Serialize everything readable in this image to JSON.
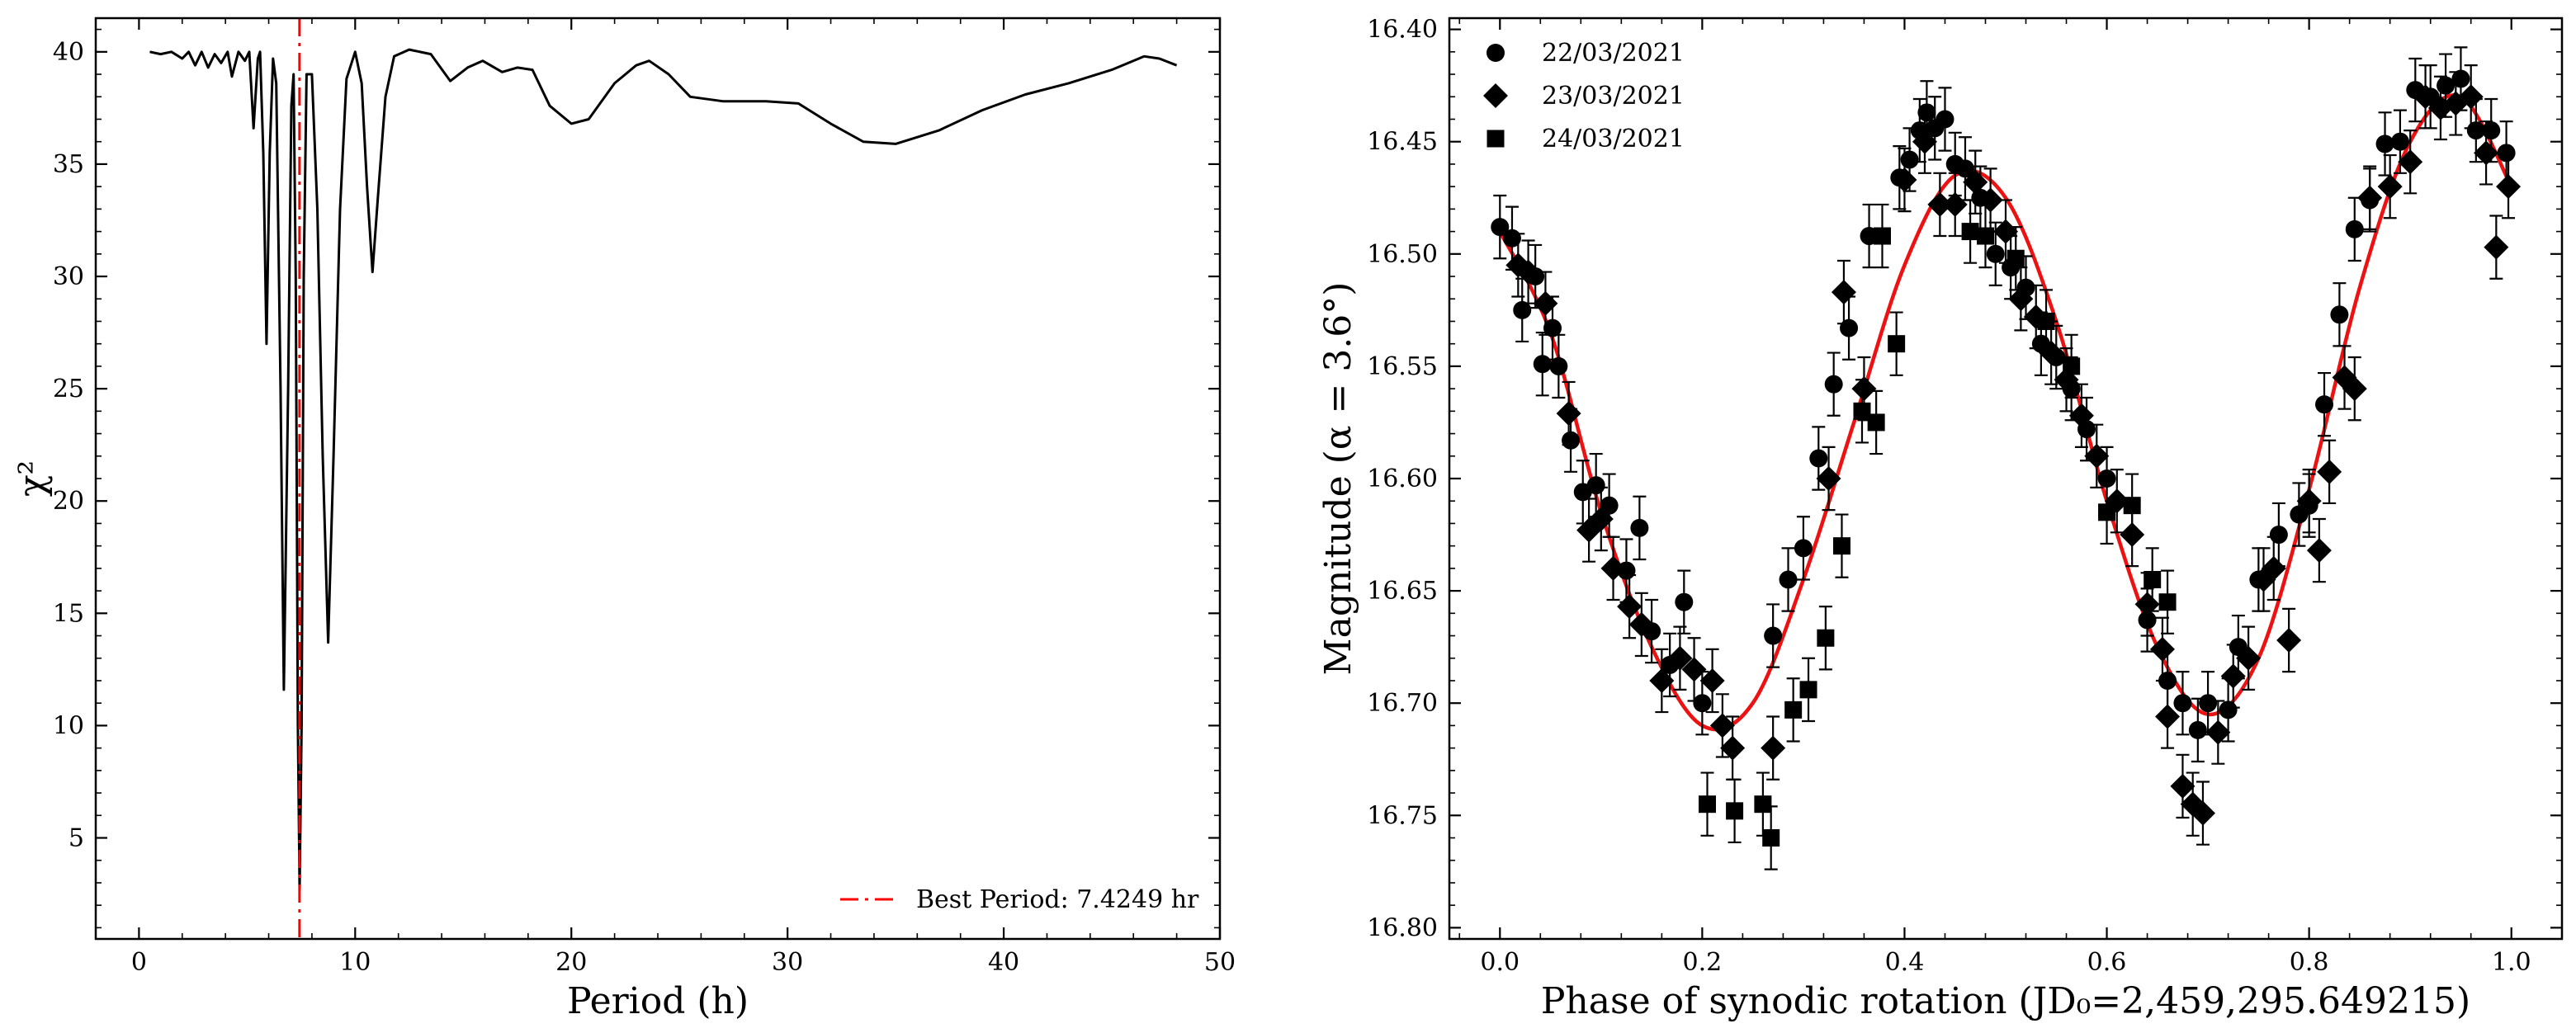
{
  "chart_data": [
    {
      "type": "line",
      "title": "",
      "xlabel": "Period (h)",
      "ylabel": "χ²",
      "xlim": [
        -2,
        50
      ],
      "ylim": [
        0.5,
        41.5
      ],
      "xticks": [
        0,
        10,
        20,
        30,
        40,
        50
      ],
      "yticks": [
        5,
        10,
        15,
        20,
        25,
        30,
        35,
        40
      ],
      "grid": false,
      "series": [
        {
          "name": "chi2",
          "color": "#000000",
          "points": [
            [
              0.5,
              40.0
            ],
            [
              1.0,
              39.9
            ],
            [
              1.5,
              40.0
            ],
            [
              2.0,
              39.7
            ],
            [
              2.3,
              40.0
            ],
            [
              2.6,
              39.4
            ],
            [
              2.9,
              40.0
            ],
            [
              3.2,
              39.3
            ],
            [
              3.5,
              39.9
            ],
            [
              3.8,
              39.5
            ],
            [
              4.1,
              40.0
            ],
            [
              4.3,
              38.9
            ],
            [
              4.6,
              40.0
            ],
            [
              4.9,
              39.6
            ],
            [
              5.1,
              40.0
            ],
            [
              5.3,
              36.6
            ],
            [
              5.5,
              39.7
            ],
            [
              5.6,
              40.0
            ],
            [
              5.75,
              35.5
            ],
            [
              5.9,
              27.0
            ],
            [
              6.05,
              35.5
            ],
            [
              6.2,
              39.7
            ],
            [
              6.35,
              38.6
            ],
            [
              6.55,
              25.0
            ],
            [
              6.7,
              11.6
            ],
            [
              6.9,
              25.0
            ],
            [
              7.05,
              37.6
            ],
            [
              7.15,
              39.0
            ],
            [
              7.25,
              30.0
            ],
            [
              7.35,
              10.0
            ],
            [
              7.43,
              2.7
            ],
            [
              7.52,
              10.0
            ],
            [
              7.62,
              30.0
            ],
            [
              7.75,
              39.0
            ],
            [
              8.0,
              39.0
            ],
            [
              8.25,
              33.0
            ],
            [
              8.5,
              22.0
            ],
            [
              8.75,
              13.7
            ],
            [
              9.0,
              22.0
            ],
            [
              9.3,
              33.0
            ],
            [
              9.6,
              38.8
            ],
            [
              10.0,
              40.0
            ],
            [
              10.3,
              38.6
            ],
            [
              10.55,
              34.0
            ],
            [
              10.8,
              30.2
            ],
            [
              11.05,
              33.5
            ],
            [
              11.4,
              38.0
            ],
            [
              11.8,
              39.8
            ],
            [
              12.5,
              40.1
            ],
            [
              13.5,
              39.9
            ],
            [
              14.4,
              38.7
            ],
            [
              15.2,
              39.3
            ],
            [
              15.9,
              39.6
            ],
            [
              16.8,
              39.1
            ],
            [
              17.5,
              39.3
            ],
            [
              18.2,
              39.2
            ],
            [
              19.0,
              37.6
            ],
            [
              20.0,
              36.8
            ],
            [
              20.8,
              37.0
            ],
            [
              22.0,
              38.6
            ],
            [
              23.0,
              39.4
            ],
            [
              23.6,
              39.6
            ],
            [
              24.5,
              39.0
            ],
            [
              25.5,
              38.0
            ],
            [
              27.0,
              37.8
            ],
            [
              29.0,
              37.8
            ],
            [
              30.5,
              37.7
            ],
            [
              32.0,
              36.8
            ],
            [
              33.5,
              36.0
            ],
            [
              35.0,
              35.9
            ],
            [
              37.0,
              36.5
            ],
            [
              39.0,
              37.4
            ],
            [
              41.0,
              38.1
            ],
            [
              43.0,
              38.6
            ],
            [
              45.0,
              39.2
            ],
            [
              46.5,
              39.8
            ],
            [
              47.2,
              39.7
            ],
            [
              48.0,
              39.4
            ]
          ]
        }
      ],
      "vline": {
        "x": 7.4249,
        "color": "#ff0000",
        "style": "dashdot"
      },
      "legend": {
        "location": "lower-right",
        "entries": [
          {
            "label": "Best Period: 7.4249 hr",
            "color": "#ff0000",
            "style": "dashdot"
          }
        ]
      }
    },
    {
      "type": "scatter",
      "title": "",
      "xlabel": "Phase of synodic rotation (JD₀=2,459,295.649215)",
      "ylabel": "Magnitude (α = 3.6°)",
      "xlim": [
        -0.05,
        1.05
      ],
      "ylim": [
        16.805,
        16.395
      ],
      "xticks": [
        0.0,
        0.2,
        0.4,
        0.6,
        0.8,
        1.0
      ],
      "xtick_labels": [
        "0.0",
        "0.2",
        "0.4",
        "0.6",
        "0.8",
        "1.0"
      ],
      "yticks": [
        16.4,
        16.45,
        16.5,
        16.55,
        16.6,
        16.65,
        16.7,
        16.75,
        16.8
      ],
      "ytick_labels": [
        "16.40",
        "16.45",
        "16.50",
        "16.55",
        "16.60",
        "16.65",
        "16.70",
        "16.75",
        "16.80"
      ],
      "grid": false,
      "error": 0.014,
      "fit": {
        "color": "#ee1111",
        "points": [
          [
            0.0,
            16.49
          ],
          [
            0.05,
            16.535
          ],
          [
            0.1,
            16.615
          ],
          [
            0.15,
            16.675
          ],
          [
            0.2,
            16.71
          ],
          [
            0.25,
            16.7
          ],
          [
            0.3,
            16.645
          ],
          [
            0.35,
            16.575
          ],
          [
            0.4,
            16.505
          ],
          [
            0.45,
            16.465
          ],
          [
            0.5,
            16.475
          ],
          [
            0.55,
            16.53
          ],
          [
            0.6,
            16.61
          ],
          [
            0.65,
            16.675
          ],
          [
            0.7,
            16.705
          ],
          [
            0.75,
            16.68
          ],
          [
            0.8,
            16.605
          ],
          [
            0.85,
            16.515
          ],
          [
            0.9,
            16.45
          ],
          [
            0.95,
            16.43
          ],
          [
            1.0,
            16.47
          ]
        ]
      },
      "series": [
        {
          "name": "22/03/2021",
          "marker": "circle",
          "points": [
            [
              0.0,
              16.488
            ],
            [
              0.012,
              16.493
            ],
            [
              0.022,
              16.525
            ],
            [
              0.035,
              16.51
            ],
            [
              0.042,
              16.549
            ],
            [
              0.052,
              16.533
            ],
            [
              0.058,
              16.55
            ],
            [
              0.07,
              16.583
            ],
            [
              0.082,
              16.606
            ],
            [
              0.095,
              16.603
            ],
            [
              0.108,
              16.612
            ],
            [
              0.125,
              16.641
            ],
            [
              0.138,
              16.622
            ],
            [
              0.15,
              16.668
            ],
            [
              0.168,
              16.683
            ],
            [
              0.182,
              16.655
            ],
            [
              0.2,
              16.7
            ],
            [
              0.27,
              16.67
            ],
            [
              0.285,
              16.645
            ],
            [
              0.3,
              16.631
            ],
            [
              0.315,
              16.591
            ],
            [
              0.33,
              16.558
            ],
            [
              0.345,
              16.533
            ],
            [
              0.365,
              16.492
            ],
            [
              0.395,
              16.466
            ],
            [
              0.405,
              16.458
            ],
            [
              0.415,
              16.445
            ],
            [
              0.422,
              16.437
            ],
            [
              0.43,
              16.444
            ],
            [
              0.44,
              16.44
            ],
            [
              0.45,
              16.46
            ],
            [
              0.46,
              16.462
            ],
            [
              0.475,
              16.475
            ],
            [
              0.49,
              16.5
            ],
            [
              0.505,
              16.506
            ],
            [
              0.52,
              16.515
            ],
            [
              0.535,
              16.54
            ],
            [
              0.55,
              16.546
            ],
            [
              0.565,
              16.56
            ],
            [
              0.58,
              16.578
            ],
            [
              0.6,
              16.6
            ],
            [
              0.64,
              16.663
            ],
            [
              0.66,
              16.69
            ],
            [
              0.675,
              16.7
            ],
            [
              0.69,
              16.712
            ],
            [
              0.7,
              16.7
            ],
            [
              0.72,
              16.703
            ],
            [
              0.73,
              16.675
            ],
            [
              0.75,
              16.645
            ],
            [
              0.77,
              16.625
            ],
            [
              0.79,
              16.616
            ],
            [
              0.8,
              16.612
            ],
            [
              0.815,
              16.567
            ],
            [
              0.83,
              16.527
            ],
            [
              0.845,
              16.489
            ],
            [
              0.86,
              16.476
            ],
            [
              0.875,
              16.451
            ],
            [
              0.89,
              16.45
            ],
            [
              0.905,
              16.427
            ],
            [
              0.92,
              16.43
            ],
            [
              0.935,
              16.425
            ],
            [
              0.95,
              16.422
            ],
            [
              0.965,
              16.445
            ],
            [
              0.98,
              16.445
            ],
            [
              0.995,
              16.455
            ]
          ]
        },
        {
          "name": "23/03/2021",
          "marker": "diamond",
          "points": [
            [
              0.018,
              16.505
            ],
            [
              0.028,
              16.508
            ],
            [
              0.045,
              16.522
            ],
            [
              0.068,
              16.571
            ],
            [
              0.088,
              16.623
            ],
            [
              0.1,
              16.618
            ],
            [
              0.112,
              16.64
            ],
            [
              0.128,
              16.657
            ],
            [
              0.14,
              16.665
            ],
            [
              0.16,
              16.69
            ],
            [
              0.178,
              16.68
            ],
            [
              0.192,
              16.685
            ],
            [
              0.21,
              16.69
            ],
            [
              0.22,
              16.71
            ],
            [
              0.23,
              16.72
            ],
            [
              0.27,
              16.72
            ],
            [
              0.325,
              16.6
            ],
            [
              0.34,
              16.517
            ],
            [
              0.36,
              16.56
            ],
            [
              0.4,
              16.467
            ],
            [
              0.42,
              16.45
            ],
            [
              0.435,
              16.478
            ],
            [
              0.45,
              16.478
            ],
            [
              0.47,
              16.468
            ],
            [
              0.485,
              16.476
            ],
            [
              0.5,
              16.49
            ],
            [
              0.515,
              16.52
            ],
            [
              0.53,
              16.528
            ],
            [
              0.545,
              16.544
            ],
            [
              0.56,
              16.556
            ],
            [
              0.575,
              16.572
            ],
            [
              0.59,
              16.59
            ],
            [
              0.61,
              16.61
            ],
            [
              0.625,
              16.625
            ],
            [
              0.64,
              16.656
            ],
            [
              0.655,
              16.676
            ],
            [
              0.66,
              16.706
            ],
            [
              0.675,
              16.737
            ],
            [
              0.685,
              16.745
            ],
            [
              0.695,
              16.749
            ],
            [
              0.71,
              16.713
            ],
            [
              0.725,
              16.688
            ],
            [
              0.74,
              16.68
            ],
            [
              0.755,
              16.645
            ],
            [
              0.765,
              16.64
            ],
            [
              0.78,
              16.672
            ],
            [
              0.8,
              16.61
            ],
            [
              0.81,
              16.632
            ],
            [
              0.82,
              16.597
            ],
            [
              0.835,
              16.555
            ],
            [
              0.845,
              16.56
            ],
            [
              0.86,
              16.475
            ],
            [
              0.88,
              16.47
            ],
            [
              0.9,
              16.459
            ],
            [
              0.915,
              16.43
            ],
            [
              0.93,
              16.435
            ],
            [
              0.945,
              16.433
            ],
            [
              0.96,
              16.43
            ],
            [
              0.975,
              16.455
            ],
            [
              0.985,
              16.497
            ],
            [
              0.997,
              16.47
            ]
          ]
        },
        {
          "name": "24/03/2021",
          "marker": "square",
          "points": [
            [
              0.205,
              16.745
            ],
            [
              0.232,
              16.748
            ],
            [
              0.26,
              16.745
            ],
            [
              0.268,
              16.76
            ],
            [
              0.29,
              16.703
            ],
            [
              0.305,
              16.694
            ],
            [
              0.322,
              16.671
            ],
            [
              0.338,
              16.63
            ],
            [
              0.358,
              16.57
            ],
            [
              0.372,
              16.575
            ],
            [
              0.378,
              16.492
            ],
            [
              0.392,
              16.54
            ],
            [
              0.465,
              16.49
            ],
            [
              0.48,
              16.492
            ],
            [
              0.51,
              16.502
            ],
            [
              0.54,
              16.53
            ],
            [
              0.565,
              16.55
            ],
            [
              0.6,
              16.615
            ],
            [
              0.625,
              16.612
            ],
            [
              0.645,
              16.645
            ],
            [
              0.66,
              16.655
            ]
          ]
        }
      ],
      "legend": {
        "location": "top-left"
      }
    }
  ]
}
